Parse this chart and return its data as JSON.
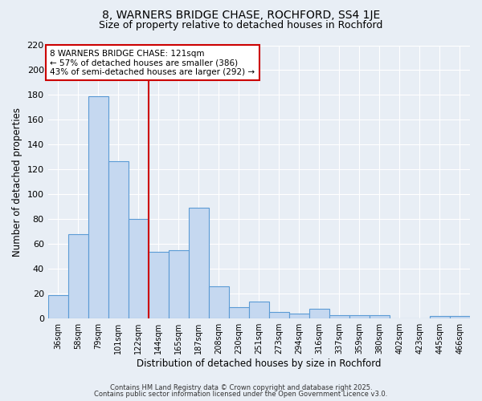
{
  "title1": "8, WARNERS BRIDGE CHASE, ROCHFORD, SS4 1JE",
  "title2": "Size of property relative to detached houses in Rochford",
  "xlabel": "Distribution of detached houses by size in Rochford",
  "ylabel": "Number of detached properties",
  "bar_labels": [
    "36sqm",
    "58sqm",
    "79sqm",
    "101sqm",
    "122sqm",
    "144sqm",
    "165sqm",
    "187sqm",
    "208sqm",
    "230sqm",
    "251sqm",
    "273sqm",
    "294sqm",
    "316sqm",
    "337sqm",
    "359sqm",
    "380sqm",
    "402sqm",
    "423sqm",
    "445sqm",
    "466sqm"
  ],
  "bar_values": [
    19,
    68,
    179,
    127,
    80,
    54,
    55,
    89,
    26,
    9,
    14,
    5,
    4,
    8,
    3,
    3,
    3,
    0,
    0,
    2,
    2
  ],
  "bar_color": "#c5d8f0",
  "bar_edgecolor": "#5b9bd5",
  "vline_x": 4.5,
  "vline_color": "#cc0000",
  "annotation_text": "8 WARNERS BRIDGE CHASE: 121sqm\n← 57% of detached houses are smaller (386)\n43% of semi-detached houses are larger (292) →",
  "annotation_box_facecolor": "#ffffff",
  "annotation_box_edgecolor": "#cc0000",
  "annotation_fontsize": 7.5,
  "ylim": [
    0,
    220
  ],
  "yticks": [
    0,
    20,
    40,
    60,
    80,
    100,
    120,
    140,
    160,
    180,
    200,
    220
  ],
  "bg_color": "#e8eef5",
  "grid_color": "#ffffff",
  "title1_fontsize": 10,
  "title2_fontsize": 9,
  "tick_fontsize": 7,
  "footnote1": "Contains HM Land Registry data © Crown copyright and database right 2025.",
  "footnote2": "Contains public sector information licensed under the Open Government Licence v3.0."
}
